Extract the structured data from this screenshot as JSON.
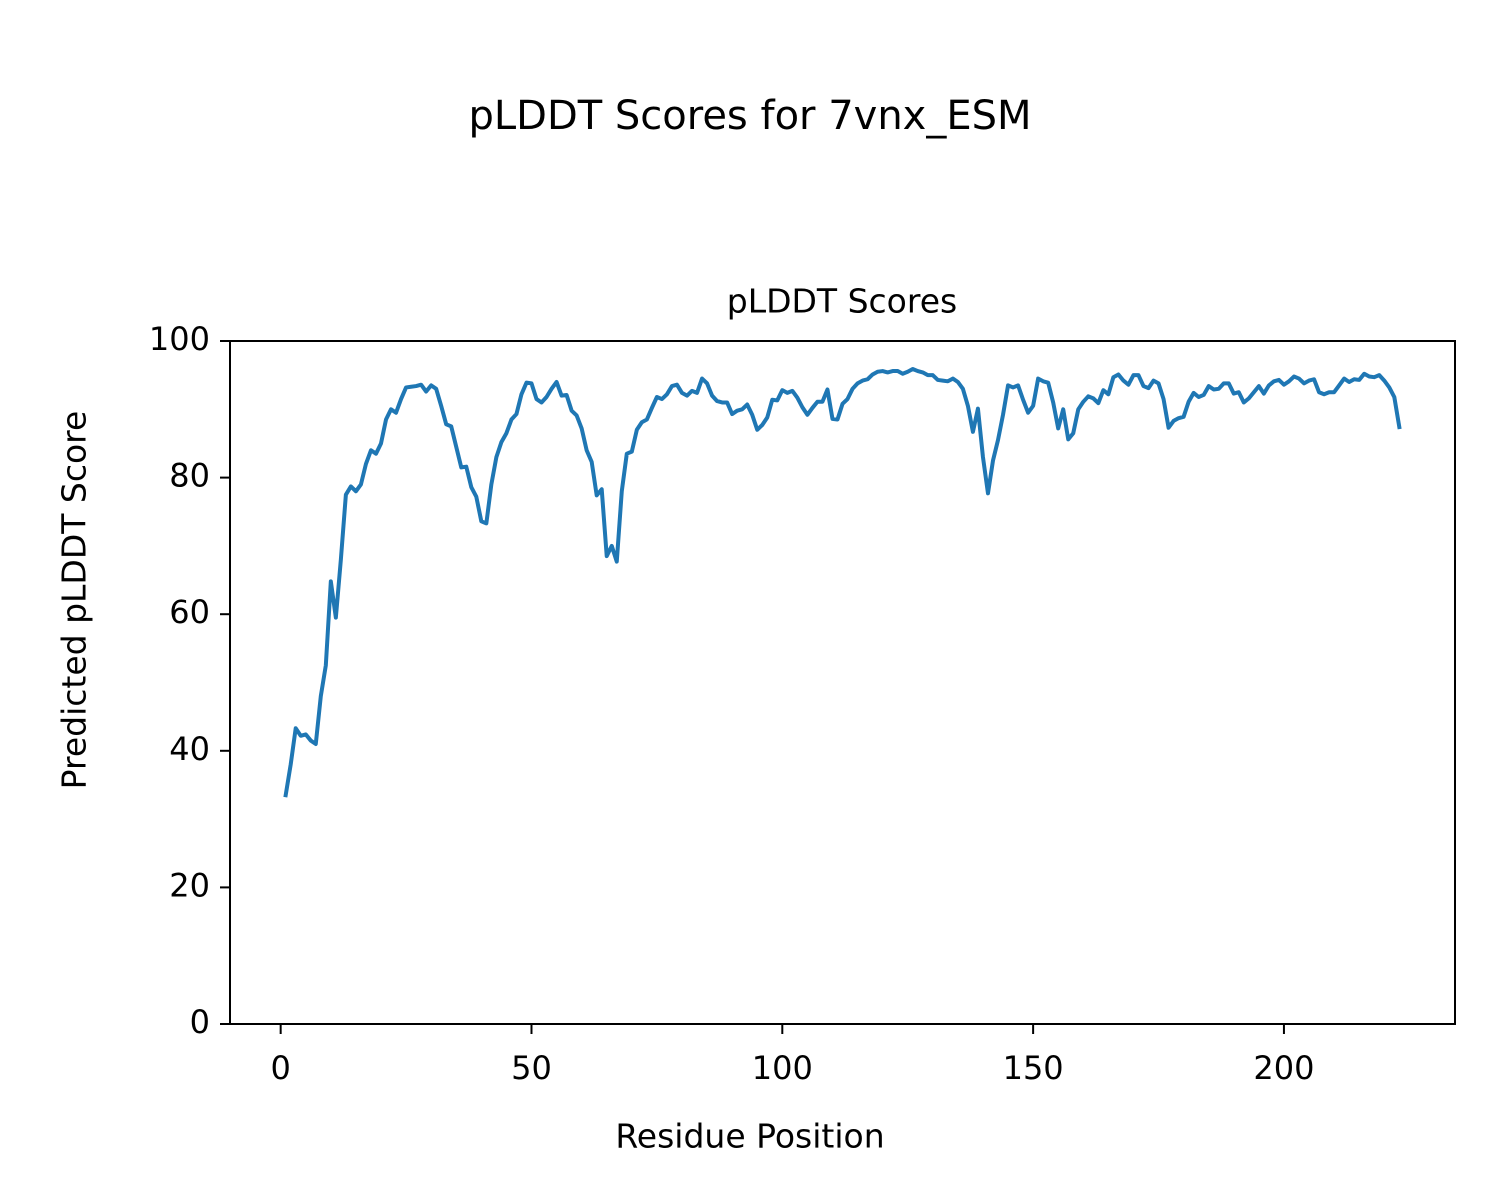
{
  "chart_data": {
    "type": "line",
    "suptitle": "pLDDT Scores for 7vnx_ESM",
    "title": "pLDDT Scores",
    "xlabel": "Residue Position",
    "ylabel": "Predicted pLDDT Score",
    "color": "#1f77b4",
    "xlim": [
      -10.1,
      234.1
    ],
    "ylim": [
      0,
      100
    ],
    "xticks": [
      0,
      50,
      100,
      150,
      200
    ],
    "yticks": [
      0,
      20,
      40,
      60,
      80,
      100
    ],
    "x": [
      1,
      2,
      3,
      4,
      5,
      6,
      7,
      8,
      9,
      10,
      11,
      12,
      13,
      14,
      15,
      16,
      17,
      18,
      19,
      20,
      21,
      22,
      23,
      24,
      25,
      26,
      27,
      28,
      29,
      30,
      31,
      32,
      33,
      34,
      35,
      36,
      37,
      38,
      39,
      40,
      41,
      42,
      43,
      44,
      45,
      46,
      47,
      48,
      49,
      50,
      51,
      52,
      53,
      54,
      55,
      56,
      57,
      58,
      59,
      60,
      61,
      62,
      63,
      64,
      65,
      66,
      67,
      68,
      69,
      70,
      71,
      72,
      73,
      74,
      75,
      76,
      77,
      78,
      79,
      80,
      81,
      82,
      83,
      84,
      85,
      86,
      87,
      88,
      89,
      90,
      91,
      92,
      93,
      94,
      95,
      96,
      97,
      98,
      99,
      100,
      101,
      102,
      103,
      104,
      105,
      106,
      107,
      108,
      109,
      110,
      111,
      112,
      113,
      114,
      115,
      116,
      117,
      118,
      119,
      120,
      121,
      122,
      123,
      124,
      125,
      126,
      127,
      128,
      129,
      130,
      131,
      132,
      133,
      134,
      135,
      136,
      137,
      138,
      139,
      140,
      141,
      142,
      143,
      144,
      145,
      146,
      147,
      148,
      149,
      150,
      151,
      152,
      153,
      154,
      155,
      156,
      157,
      158,
      159,
      160,
      161,
      162,
      163,
      164,
      165,
      166,
      167,
      168,
      169,
      170,
      171,
      172,
      173,
      174,
      175,
      176,
      177,
      178,
      179,
      180,
      181,
      182,
      183,
      184,
      185,
      186,
      187,
      188,
      189,
      190,
      191,
      192,
      193,
      194,
      195,
      196,
      197,
      198,
      199,
      200,
      201,
      202,
      203,
      204,
      205,
      206,
      207,
      208,
      209,
      210,
      211,
      212,
      213,
      214,
      215,
      216,
      217,
      218,
      219,
      220,
      221,
      222,
      223
    ],
    "values": [
      33.5,
      38,
      43.3,
      42.2,
      42.4,
      41.5,
      41,
      48,
      52.5,
      64.8,
      59.5,
      68,
      77.5,
      78.7,
      78,
      79,
      82,
      84,
      83.5,
      85,
      88.5,
      90,
      89.5,
      91.5,
      93.2,
      93.3,
      93.4,
      93.6,
      92.6,
      93.5,
      93,
      90.5,
      87.8,
      87.5,
      84.5,
      81.5,
      81.6,
      78.6,
      77.2,
      73.6,
      73.3,
      79,
      83,
      85.2,
      86.5,
      88.5,
      89.3,
      92.2,
      93.9,
      93.8,
      91.5,
      91,
      91.8,
      93,
      94,
      92,
      92.1,
      89.8,
      89.1,
      87.2,
      84,
      82.3,
      77.4,
      78.3,
      68.5,
      70,
      67.7,
      78,
      83.5,
      83.8,
      87,
      88.1,
      88.5,
      90.2,
      91.8,
      91.5,
      92.2,
      93.4,
      93.6,
      92.4,
      92,
      92.7,
      92.4,
      94.5,
      93.8,
      92,
      91.2,
      91,
      91,
      89.3,
      89.8,
      90,
      90.7,
      89.2,
      87,
      87.7,
      88.8,
      91.4,
      91.3,
      92.8,
      92.4,
      92.7,
      91.7,
      90.3,
      89.2,
      90.2,
      91.1,
      91.1,
      92.9,
      88.6,
      88.5,
      90.8,
      91.5,
      93,
      93.8,
      94.2,
      94.4,
      95.1,
      95.5,
      95.6,
      95.4,
      95.6,
      95.6,
      95.2,
      95.5,
      95.9,
      95.6,
      95.4,
      95,
      95,
      94.3,
      94.2,
      94.1,
      94.5,
      94,
      93,
      90.5,
      86.7,
      90.1,
      83,
      77.7,
      82.5,
      85.5,
      89.2,
      93.5,
      93.2,
      93.5,
      91.4,
      89.5,
      90.5,
      94.5,
      94.1,
      93.9,
      91,
      87.2,
      90,
      85.6,
      86.5,
      90,
      91.1,
      91.9,
      91.6,
      90.9,
      92.8,
      92.2,
      94.7,
      95.1,
      94.2,
      93.6,
      95,
      95,
      93.4,
      93.1,
      94.2,
      93.8,
      91.5,
      87.3,
      88.3,
      88.7,
      88.9,
      91.1,
      92.4,
      91.8,
      92.1,
      93.4,
      92.9,
      93,
      93.8,
      93.8,
      92.3,
      92.5,
      91,
      91.6,
      92.5,
      93.4,
      92.3,
      93.5,
      94.1,
      94.3,
      93.6,
      94.1,
      94.8,
      94.5,
      93.8,
      94.2,
      94.4,
      92.5,
      92.2,
      92.5,
      92.5,
      93.5,
      94.5,
      94,
      94.4,
      94.3,
      95.2,
      94.8,
      94.7,
      95,
      94.2,
      93.2,
      91.8,
      87.4
    ]
  }
}
